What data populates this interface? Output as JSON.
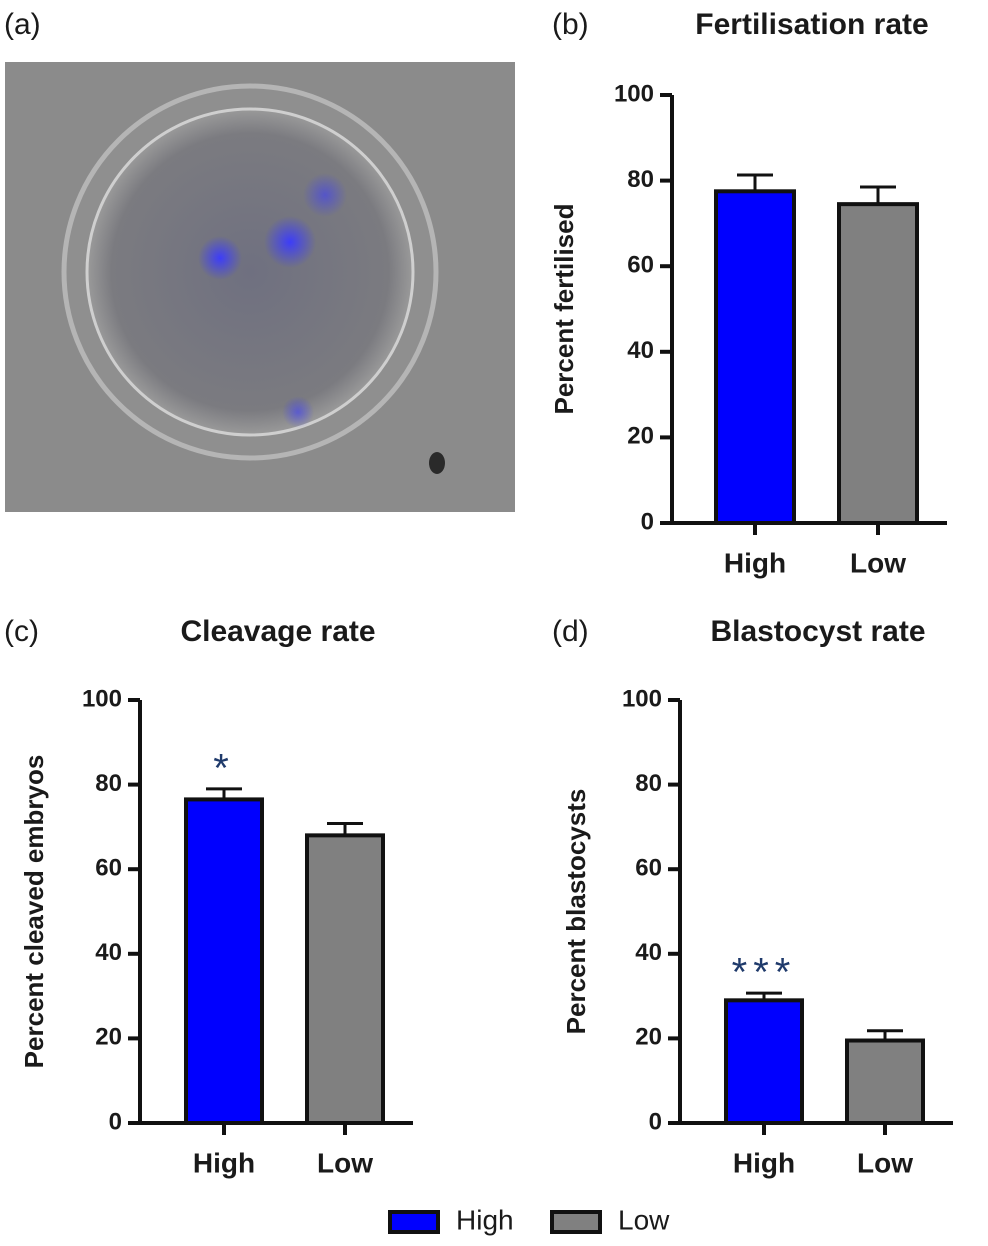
{
  "image_panel": {
    "label": "(a)"
  },
  "legend": {
    "entries": [
      {
        "name": "High",
        "color": "#0000ff"
      },
      {
        "name": "Low",
        "color": "#808080"
      }
    ]
  },
  "chart_data": [
    {
      "type": "bar",
      "panel_label": "(b)",
      "title": "Fertilisation rate",
      "y_label": "Percent fertilised",
      "categories": [
        "High",
        "Low"
      ],
      "values": [
        77.5,
        74.5
      ],
      "errors": [
        3.8,
        4
      ],
      "colors": [
        "#0000ff",
        "#808080"
      ],
      "significance": [
        null,
        null
      ],
      "ylim": [
        0,
        100
      ],
      "yticks": [
        0,
        20,
        40,
        60,
        80,
        100
      ]
    },
    {
      "type": "bar",
      "panel_label": "(c)",
      "title": "Cleavage rate",
      "y_label": "Percent cleaved embryos",
      "categories": [
        "High",
        "Low"
      ],
      "values": [
        76.5,
        68
      ],
      "errors": [
        2.5,
        2.8
      ],
      "colors": [
        "#0000ff",
        "#808080"
      ],
      "significance": [
        "*",
        null
      ],
      "ylim": [
        0,
        100
      ],
      "yticks": [
        0,
        20,
        40,
        60,
        80,
        100
      ]
    },
    {
      "type": "bar",
      "panel_label": "(d)",
      "title": "Blastocyst rate",
      "y_label": "Percent blastocysts",
      "categories": [
        "High",
        "Low"
      ],
      "values": [
        29,
        19.5
      ],
      "errors": [
        1.7,
        2.3
      ],
      "colors": [
        "#0000ff",
        "#808080"
      ],
      "significance": [
        "***",
        null
      ],
      "ylim": [
        0,
        100
      ],
      "yticks": [
        0,
        20,
        40,
        60,
        80,
        100
      ]
    }
  ]
}
